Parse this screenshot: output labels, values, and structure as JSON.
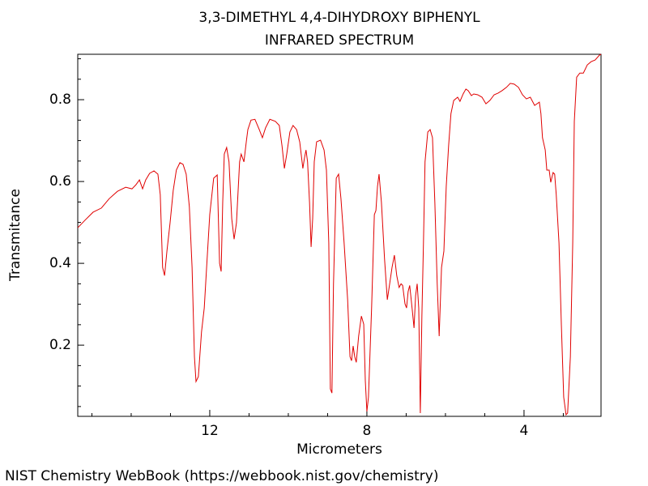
{
  "chart_data": {
    "type": "line",
    "title": "3,3-DIMETHYL 4,4-DIHYDROXY BIPHENYL",
    "subtitle": "INFRARED SPECTRUM",
    "x_label": "Micrometers",
    "y_label": "Transmitance",
    "xlim": [
      15.36,
      2.04
    ],
    "ylim": [
      0.026,
      0.911
    ],
    "xticks": [
      12,
      8,
      4
    ],
    "yticks": [
      0.2,
      0.4,
      0.6,
      0.8
    ],
    "xminorticks": [
      15,
      14,
      13,
      11,
      10,
      9,
      7,
      6,
      5,
      3
    ],
    "yminorticks": [
      0.05,
      0.1,
      0.15,
      0.25,
      0.3,
      0.35,
      0.45,
      0.5,
      0.55,
      0.65,
      0.7,
      0.75,
      0.85,
      0.9
    ],
    "grid": false,
    "series": [
      {
        "color": "#e00000",
        "x": [
          15.36,
          15.18,
          14.97,
          14.76,
          14.56,
          14.35,
          14.14,
          13.98,
          13.88,
          13.79,
          13.71,
          13.63,
          13.53,
          13.42,
          13.32,
          13.26,
          13.2,
          13.15,
          13.09,
          13.01,
          12.93,
          12.85,
          12.76,
          12.68,
          12.6,
          12.52,
          12.45,
          12.39,
          12.35,
          12.29,
          12.21,
          12.14,
          12.08,
          12.0,
          11.9,
          11.81,
          11.75,
          11.71,
          11.67,
          11.63,
          11.57,
          11.51,
          11.44,
          11.38,
          11.32,
          11.24,
          11.2,
          11.13,
          11.07,
          11.03,
          10.95,
          10.85,
          10.74,
          10.66,
          10.58,
          10.47,
          10.33,
          10.23,
          10.16,
          10.1,
          10.04,
          9.96,
          9.88,
          9.79,
          9.71,
          9.63,
          9.59,
          9.55,
          9.51,
          9.46,
          9.42,
          9.38,
          9.34,
          9.28,
          9.18,
          9.09,
          9.03,
          8.97,
          8.93,
          8.89,
          8.85,
          8.78,
          8.72,
          8.66,
          8.58,
          8.49,
          8.43,
          8.39,
          8.35,
          8.31,
          8.27,
          8.21,
          8.14,
          8.08,
          8.04,
          8.0,
          7.96,
          7.88,
          7.81,
          7.77,
          7.73,
          7.69,
          7.63,
          7.55,
          7.48,
          7.42,
          7.36,
          7.3,
          7.24,
          7.18,
          7.13,
          7.09,
          7.03,
          6.99,
          6.95,
          6.91,
          6.85,
          6.8,
          6.76,
          6.72,
          6.68,
          6.64,
          6.6,
          6.56,
          6.52,
          6.45,
          6.39,
          6.33,
          6.27,
          6.21,
          6.16,
          6.1,
          6.04,
          5.98,
          5.92,
          5.86,
          5.79,
          5.69,
          5.63,
          5.55,
          5.48,
          5.42,
          5.34,
          5.28,
          5.18,
          5.07,
          4.97,
          4.87,
          4.76,
          4.66,
          4.56,
          4.45,
          4.35,
          4.25,
          4.14,
          4.04,
          3.94,
          3.84,
          3.73,
          3.61,
          3.57,
          3.53,
          3.46,
          3.42,
          3.36,
          3.32,
          3.26,
          3.22,
          3.18,
          3.11,
          3.05,
          2.99,
          2.93,
          2.89,
          2.82,
          2.76,
          2.72,
          2.66,
          2.58,
          2.49,
          2.39,
          2.29,
          2.19,
          2.08,
          2.04
        ],
        "values": [
          0.487,
          0.505,
          0.525,
          0.535,
          0.558,
          0.576,
          0.586,
          0.582,
          0.592,
          0.604,
          0.582,
          0.604,
          0.62,
          0.626,
          0.618,
          0.568,
          0.39,
          0.37,
          0.43,
          0.499,
          0.578,
          0.628,
          0.646,
          0.642,
          0.618,
          0.539,
          0.39,
          0.172,
          0.111,
          0.123,
          0.232,
          0.291,
          0.39,
          0.519,
          0.608,
          0.616,
          0.4,
          0.38,
          0.549,
          0.667,
          0.683,
          0.648,
          0.509,
          0.459,
          0.499,
          0.648,
          0.667,
          0.648,
          0.697,
          0.727,
          0.75,
          0.752,
          0.727,
          0.707,
          0.731,
          0.752,
          0.747,
          0.737,
          0.687,
          0.632,
          0.667,
          0.721,
          0.737,
          0.727,
          0.697,
          0.632,
          0.657,
          0.677,
          0.648,
          0.549,
          0.44,
          0.509,
          0.648,
          0.697,
          0.701,
          0.677,
          0.628,
          0.45,
          0.093,
          0.083,
          0.35,
          0.608,
          0.618,
          0.558,
          0.45,
          0.311,
          0.172,
          0.162,
          0.198,
          0.172,
          0.158,
          0.222,
          0.271,
          0.251,
          0.113,
          0.038,
          0.073,
          0.291,
          0.519,
          0.529,
          0.588,
          0.618,
          0.549,
          0.41,
          0.311,
          0.35,
          0.39,
          0.42,
          0.37,
          0.341,
          0.35,
          0.346,
          0.301,
          0.291,
          0.331,
          0.346,
          0.291,
          0.242,
          0.321,
          0.35,
          0.291,
          0.034,
          0.271,
          0.45,
          0.648,
          0.721,
          0.727,
          0.707,
          0.549,
          0.35,
          0.222,
          0.39,
          0.43,
          0.588,
          0.687,
          0.766,
          0.798,
          0.806,
          0.796,
          0.814,
          0.826,
          0.822,
          0.81,
          0.814,
          0.812,
          0.806,
          0.79,
          0.798,
          0.812,
          0.816,
          0.822,
          0.83,
          0.84,
          0.838,
          0.83,
          0.812,
          0.802,
          0.806,
          0.786,
          0.794,
          0.766,
          0.707,
          0.677,
          0.628,
          0.628,
          0.598,
          0.622,
          0.618,
          0.568,
          0.45,
          0.251,
          0.073,
          0.03,
          0.034,
          0.172,
          0.45,
          0.747,
          0.855,
          0.865,
          0.865,
          0.885,
          0.893,
          0.897,
          0.909,
          0.911
        ]
      }
    ]
  },
  "footer": "NIST Chemistry WebBook (https://webbook.nist.gov/chemistry)"
}
